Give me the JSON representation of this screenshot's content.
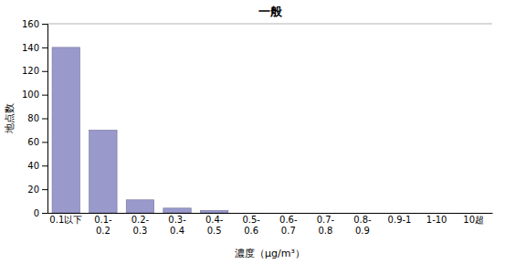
{
  "chart_data": {
    "type": "bar",
    "title": "一般",
    "xlabel": "濃度（μg/m³）",
    "ylabel": "地点数",
    "categories": [
      "0.1以下",
      "0.1-\n0.2",
      "0.2-\n0.3",
      "0.3-\n0.4",
      "0.4-\n0.5",
      "0.5-\n0.6",
      "0.6-\n0.7",
      "0.7-\n0.8",
      "0.8-\n0.9",
      "0.9-1",
      "1-10",
      "10超"
    ],
    "values": [
      140,
      70,
      11,
      4,
      2,
      0,
      0,
      0,
      0,
      0,
      0,
      0
    ],
    "color": "#9999cc",
    "ylim": [
      0,
      160
    ],
    "yticks": [
      0,
      20,
      40,
      60,
      80,
      100,
      120,
      140,
      160
    ],
    "grid": false
  }
}
